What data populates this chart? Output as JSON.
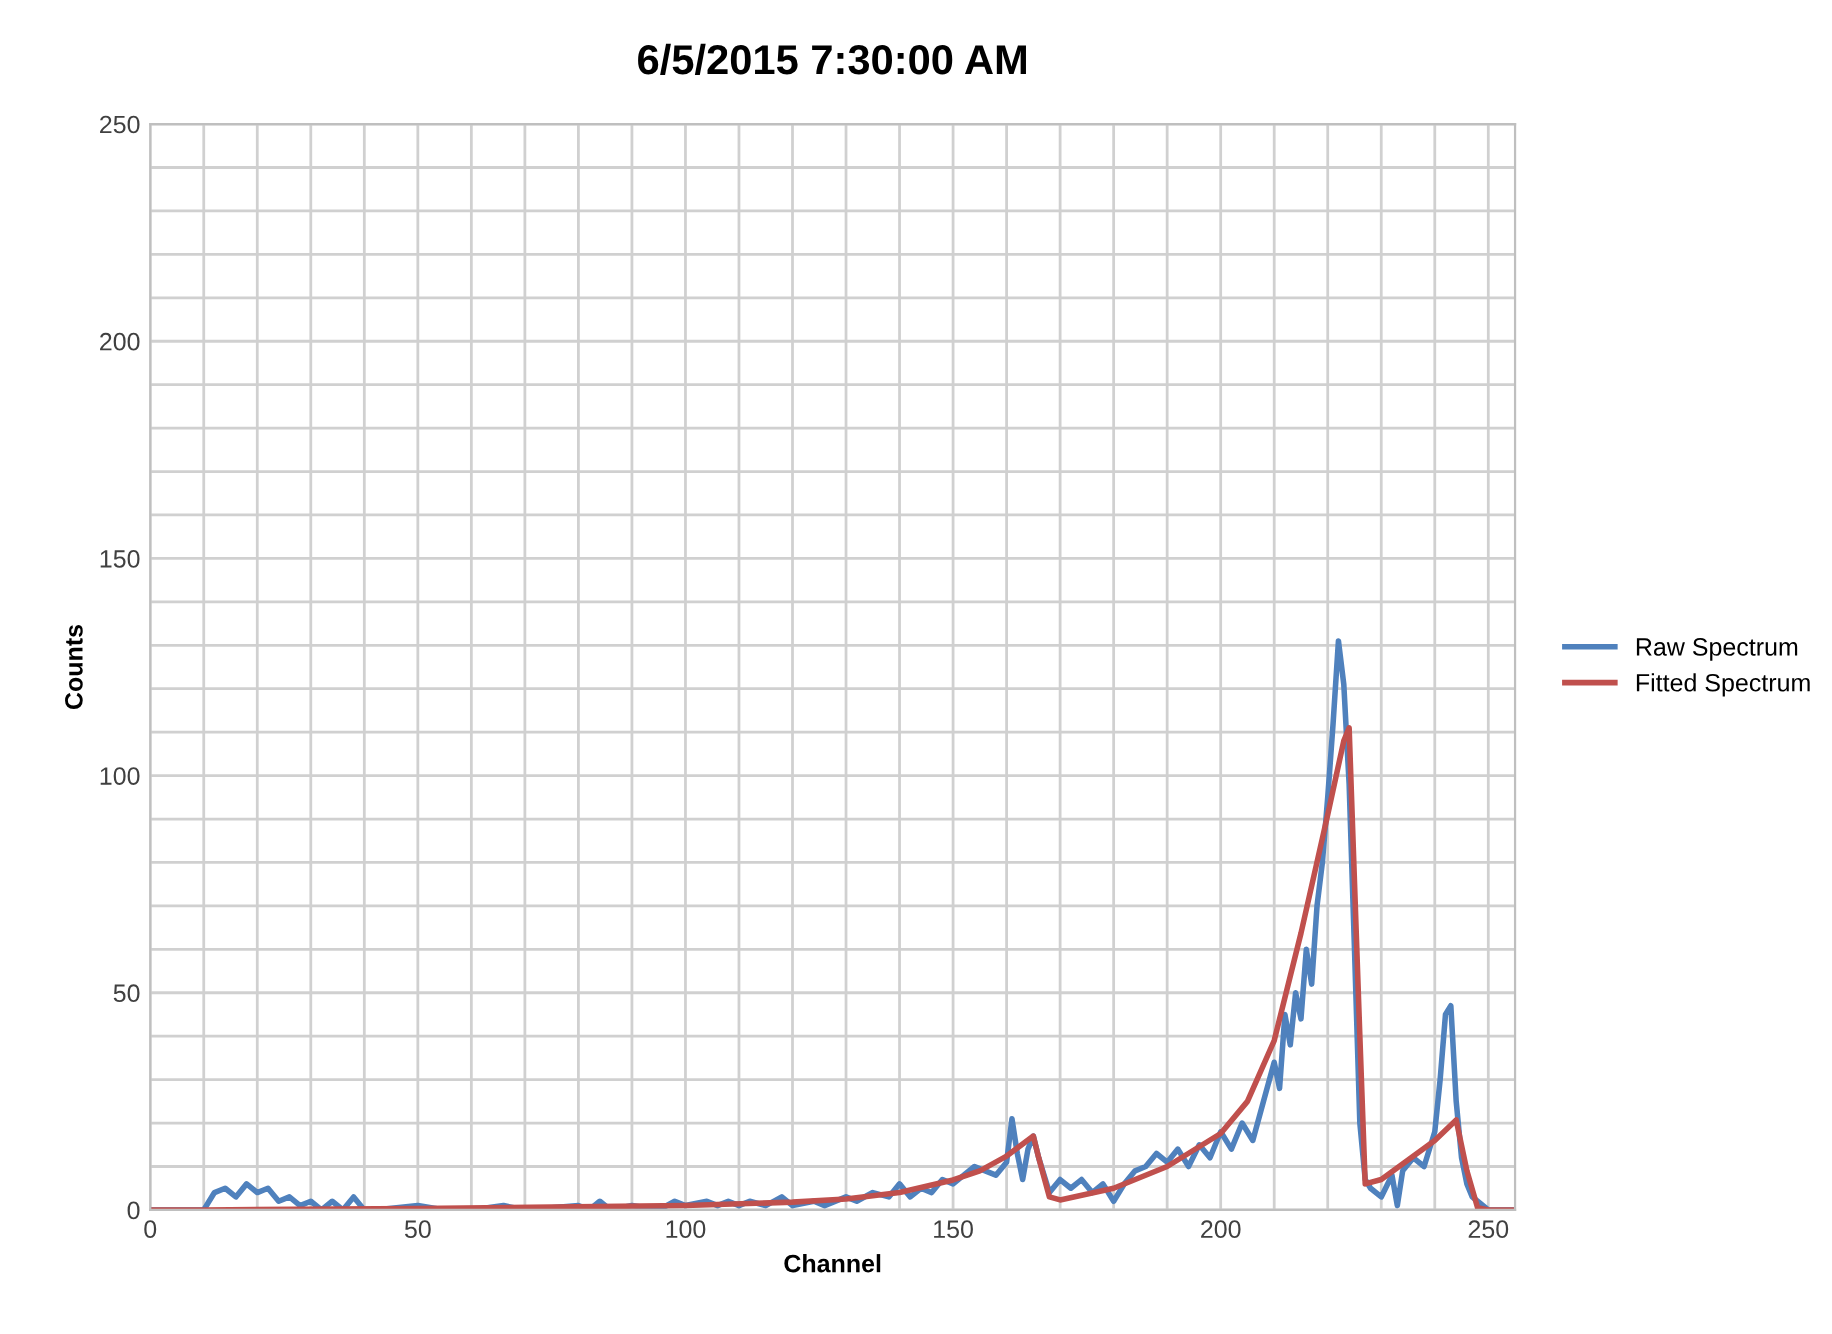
{
  "chart_data": {
    "type": "line",
    "title": "6/5/2015 7:30:00 AM",
    "xlabel": "Channel",
    "ylabel": "Counts",
    "xlim": [
      0,
      255
    ],
    "ylim": [
      0,
      250
    ],
    "xticks": [
      0,
      {
        "value": 10,
        "label": null
      },
      {
        "value": 20,
        "label": null
      },
      {
        "value": 30,
        "label": null
      },
      {
        "value": 40,
        "label": null
      },
      50,
      {
        "value": 60,
        "label": null
      },
      {
        "value": 70,
        "label": null
      },
      {
        "value": 80,
        "label": null
      },
      {
        "value": 90,
        "label": null
      },
      100,
      {
        "value": 110,
        "label": null
      },
      {
        "value": 120,
        "label": null
      },
      {
        "value": 130,
        "label": null
      },
      {
        "value": 140,
        "label": null
      },
      150,
      {
        "value": 160,
        "label": null
      },
      {
        "value": 170,
        "label": null
      },
      {
        "value": 180,
        "label": null
      },
      {
        "value": 190,
        "label": null
      },
      200,
      {
        "value": 210,
        "label": null
      },
      {
        "value": 220,
        "label": null
      },
      {
        "value": 230,
        "label": null
      },
      {
        "value": 240,
        "label": null
      },
      250
    ],
    "yticks": [
      0,
      {
        "value": 10,
        "label": null
      },
      {
        "value": 20,
        "label": null
      },
      {
        "value": 30,
        "label": null
      },
      {
        "value": 40,
        "label": null
      },
      50,
      {
        "value": 60,
        "label": null
      },
      {
        "value": 70,
        "label": null
      },
      {
        "value": 80,
        "label": null
      },
      {
        "value": 90,
        "label": null
      },
      100,
      {
        "value": 110,
        "label": null
      },
      {
        "value": 120,
        "label": null
      },
      {
        "value": 130,
        "label": null
      },
      {
        "value": 140,
        "label": null
      },
      150,
      {
        "value": 160,
        "label": null
      },
      {
        "value": 170,
        "label": null
      },
      {
        "value": 180,
        "label": null
      },
      {
        "value": 190,
        "label": null
      },
      200,
      {
        "value": 210,
        "label": null
      },
      {
        "value": 220,
        "label": null
      },
      {
        "value": 230,
        "label": null
      },
      {
        "value": 240,
        "label": null
      },
      250
    ],
    "grid": true,
    "legend": "right",
    "marker": "none",
    "line_style": "solid",
    "series": [
      {
        "name": "Raw Spectrum",
        "color": "#4f81bd",
        "x": [
          0,
          10,
          12,
          14,
          16,
          18,
          20,
          22,
          24,
          26,
          28,
          30,
          32,
          34,
          36,
          38,
          40,
          42,
          50,
          55,
          60,
          66,
          70,
          80,
          82,
          84,
          86,
          90,
          95,
          98,
          100,
          104,
          106,
          108,
          110,
          112,
          115,
          118,
          120,
          124,
          126,
          130,
          132,
          135,
          138,
          140,
          142,
          144,
          146,
          148,
          150,
          152,
          154,
          156,
          158,
          160,
          161,
          162,
          163,
          164,
          165,
          166,
          168,
          170,
          172,
          174,
          176,
          178,
          180,
          182,
          184,
          186,
          188,
          190,
          192,
          194,
          196,
          198,
          200,
          202,
          204,
          206,
          208,
          210,
          211,
          212,
          213,
          214,
          215,
          216,
          217,
          218,
          219,
          220,
          221,
          222,
          223,
          224,
          225,
          226,
          227,
          228,
          230,
          232,
          233,
          234,
          236,
          238,
          240,
          241,
          242,
          243,
          244,
          245,
          246,
          247,
          248,
          250,
          255
        ],
        "values": [
          0,
          0,
          4,
          5,
          3,
          6,
          4,
          5,
          2,
          3,
          1,
          2,
          0,
          2,
          0,
          3,
          0,
          0,
          1,
          0,
          0,
          1,
          0,
          1,
          0,
          2,
          0,
          1,
          0,
          2,
          1,
          2,
          1,
          2,
          1,
          2,
          1,
          3,
          1,
          2,
          1,
          3,
          2,
          4,
          3,
          6,
          3,
          5,
          4,
          7,
          6,
          8,
          10,
          9,
          8,
          11,
          21,
          13,
          7,
          14,
          17,
          12,
          4,
          7,
          5,
          7,
          4,
          6,
          2,
          6,
          9,
          10,
          13,
          11,
          14,
          10,
          15,
          12,
          18,
          14,
          20,
          16,
          25,
          34,
          28,
          45,
          38,
          50,
          44,
          60,
          52,
          70,
          80,
          95,
          112,
          131,
          121,
          98,
          60,
          20,
          7,
          5,
          3,
          8,
          1,
          9,
          12,
          10,
          18,
          30,
          45,
          47,
          25,
          12,
          6,
          3,
          2,
          0,
          0
        ]
      },
      {
        "name": "Fitted Spectrum",
        "color": "#c0504d",
        "x": [
          0,
          10,
          50,
          100,
          120,
          130,
          140,
          150,
          155,
          160,
          165,
          166,
          168,
          170,
          180,
          190,
          200,
          205,
          210,
          215,
          220,
          223,
          224,
          226,
          227,
          230,
          235,
          240,
          244,
          246,
          248,
          250,
          255
        ],
        "values": [
          0,
          0,
          0.3,
          1,
          1.8,
          2.5,
          4,
          6.9,
          9,
          12.4,
          17,
          12,
          3,
          2.3,
          5,
          10,
          17.6,
          25,
          39,
          63.7,
          91,
          108,
          111,
          40,
          6,
          7,
          11.5,
          16,
          20.7,
          9,
          0.5,
          0,
          0
        ]
      }
    ]
  }
}
